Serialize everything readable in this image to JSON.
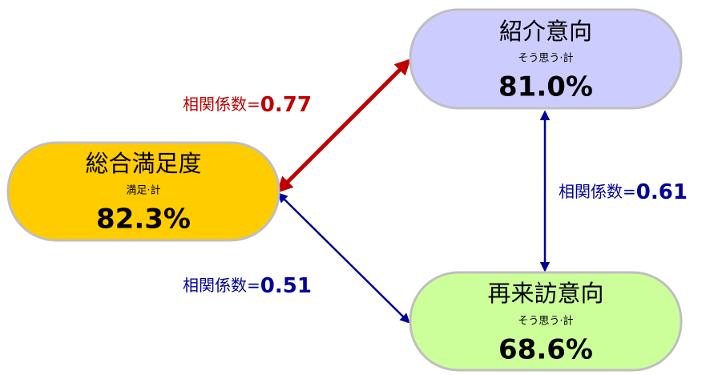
{
  "nodes": [
    {
      "title": "総合満足度",
      "subtitle": "満足·計",
      "value": "82.3%"
    },
    {
      "title": "紹介意向",
      "subtitle": "そう思う·計",
      "value": "81.0%"
    },
    {
      "title": "再来訪意向",
      "subtitle": "そう思う·計",
      "value": "68.6%"
    }
  ],
  "edges": [
    {
      "label": "相関係数=",
      "value": "0.77"
    },
    {
      "label": "相関係数=",
      "value": "0.61"
    },
    {
      "label": "相関係数=",
      "value": "0.51"
    }
  ]
}
